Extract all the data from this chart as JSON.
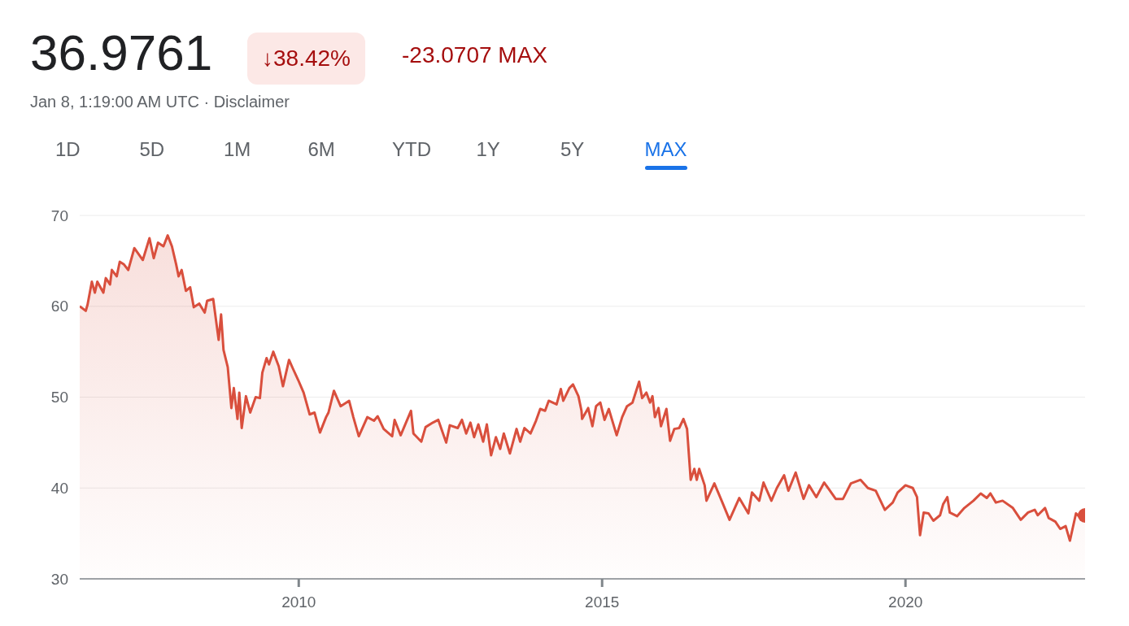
{
  "chart_data": {
    "type": "area",
    "title": "36.9761",
    "subtitle": "Jan 8, 1:19:00 AM UTC · Disclaimer",
    "annotations": [
      "↓38.42%",
      "-23.0707 MAX",
      "1D",
      "5D",
      "1M",
      "6M",
      "YTD",
      "1Y",
      "5Y",
      "MAX"
    ],
    "x": [
      2006.39,
      2006.49,
      2006.52,
      2006.59,
      2006.64,
      2006.68,
      2006.78,
      2006.82,
      2006.89,
      2006.92,
      2007.0,
      2007.05,
      2007.12,
      2007.19,
      2007.29,
      2007.43,
      2007.54,
      2007.61,
      2007.68,
      2007.77,
      2007.84,
      2007.91,
      2007.98,
      2008.02,
      2008.07,
      2008.14,
      2008.21,
      2008.27,
      2008.36,
      2008.45,
      2008.49,
      2008.59,
      2008.68,
      2008.72,
      2008.76,
      2008.83,
      2008.89,
      2008.93,
      2008.99,
      2009.02,
      2009.06,
      2009.13,
      2009.2,
      2009.29,
      2009.36,
      2009.4,
      2009.47,
      2009.51,
      2009.58,
      2009.67,
      2009.74,
      2009.84,
      2009.9,
      2009.99,
      2010.08,
      2010.18,
      2010.26,
      2010.35,
      2010.45,
      2010.49,
      2010.58,
      2010.69,
      2010.83,
      2010.9,
      2010.99,
      2011.13,
      2011.24,
      2011.3,
      2011.4,
      2011.54,
      2011.58,
      2011.68,
      2011.85,
      2011.89,
      2012.02,
      2012.09,
      2012.21,
      2012.3,
      2012.43,
      2012.49,
      2012.62,
      2012.69,
      2012.76,
      2012.83,
      2012.89,
      2012.96,
      2013.04,
      2013.1,
      2013.17,
      2013.25,
      2013.32,
      2013.38,
      2013.48,
      2013.59,
      2013.65,
      2013.72,
      2013.82,
      2013.91,
      2013.98,
      2014.06,
      2014.12,
      2014.25,
      2014.32,
      2014.36,
      2014.46,
      2014.52,
      2014.61,
      2014.66,
      2014.67,
      2014.77,
      2014.84,
      2014.9,
      2014.97,
      2015.04,
      2015.11,
      2015.24,
      2015.33,
      2015.41,
      2015.5,
      2015.61,
      2015.66,
      2015.73,
      2015.79,
      2015.83,
      2015.87,
      2015.93,
      2015.97,
      2016.06,
      2016.12,
      2016.19,
      2016.27,
      2016.34,
      2016.4,
      2016.46,
      2016.52,
      2016.56,
      2016.6,
      2016.69,
      2016.72,
      2016.85,
      2016.97,
      2017.1,
      2017.2,
      2017.26,
      2017.41,
      2017.47,
      2017.59,
      2017.66,
      2017.79,
      2017.88,
      2018.0,
      2018.07,
      2018.19,
      2018.32,
      2018.41,
      2018.53,
      2018.66,
      2018.85,
      2018.97,
      2019.1,
      2019.26,
      2019.38,
      2019.51,
      2019.66,
      2019.79,
      2019.87,
      2020.0,
      2020.12,
      2020.19,
      2020.24,
      2020.3,
      2020.38,
      2020.46,
      2020.57,
      2020.62,
      2020.69,
      2020.73,
      2020.85,
      2020.97,
      2021.12,
      2021.24,
      2021.34,
      2021.4,
      2021.49,
      2021.6,
      2021.77,
      2021.9,
      2022.02,
      2022.13,
      2022.18,
      2022.3,
      2022.36,
      2022.47,
      2022.55,
      2022.64,
      2022.71,
      2022.81,
      2022.89,
      2022.96
    ],
    "series": [
      {
        "color": "#d94f3d",
        "values": [
          60.0,
          59.5,
          60.2,
          62.7,
          61.5,
          62.7,
          61.5,
          63.1,
          62.4,
          64.0,
          63.3,
          64.9,
          64.6,
          64.0,
          66.4,
          65.1,
          67.5,
          65.3,
          67.0,
          66.6,
          67.8,
          66.6,
          64.6,
          63.3,
          64.0,
          61.7,
          62.1,
          59.9,
          60.3,
          59.3,
          60.6,
          60.8,
          56.3,
          59.1,
          55.2,
          53.3,
          48.8,
          51.0,
          47.6,
          50.5,
          46.6,
          50.1,
          48.3,
          50.0,
          49.9,
          52.7,
          54.3,
          53.6,
          55.0,
          53.4,
          51.2,
          54.1,
          53.2,
          51.9,
          50.5,
          48.1,
          48.3,
          46.1,
          47.8,
          48.3,
          50.7,
          49.0,
          49.6,
          47.8,
          45.7,
          47.8,
          47.4,
          47.9,
          46.5,
          45.7,
          47.5,
          45.8,
          48.5,
          46.0,
          45.1,
          46.7,
          47.2,
          47.5,
          45.0,
          46.9,
          46.6,
          47.5,
          46.0,
          47.2,
          45.6,
          47.0,
          45.1,
          47.0,
          43.6,
          45.6,
          44.3,
          46.0,
          43.8,
          46.5,
          45.1,
          46.6,
          46.0,
          47.4,
          48.7,
          48.5,
          49.6,
          49.2,
          50.9,
          49.6,
          51.0,
          51.4,
          50.1,
          48.5,
          47.6,
          48.8,
          46.8,
          49.0,
          49.4,
          47.5,
          48.7,
          45.8,
          47.8,
          49.0,
          49.4,
          51.7,
          49.9,
          50.5,
          49.4,
          50.1,
          47.8,
          48.8,
          46.8,
          48.7,
          45.2,
          46.5,
          46.6,
          47.6,
          46.5,
          40.9,
          42.1,
          40.9,
          42.1,
          40.3,
          38.6,
          40.5,
          38.6,
          36.5,
          38.0,
          38.9,
          37.2,
          39.5,
          38.6,
          40.6,
          38.6,
          40.0,
          41.4,
          39.7,
          41.7,
          38.8,
          40.3,
          39.0,
          40.6,
          38.8,
          38.8,
          40.5,
          40.9,
          40.0,
          39.7,
          37.6,
          38.4,
          39.5,
          40.3,
          40.0,
          39.0,
          34.8,
          37.3,
          37.2,
          36.4,
          37.0,
          38.2,
          39.0,
          37.3,
          36.9,
          37.8,
          38.6,
          39.4,
          38.9,
          39.4,
          38.4,
          38.6,
          37.8,
          36.5,
          37.3,
          37.6,
          37.0,
          37.8,
          36.7,
          36.3,
          35.5,
          35.8,
          34.2,
          37.2,
          36.7,
          36.98
        ]
      }
    ],
    "xlim": [
      2006.39,
      2022.96
    ],
    "xticks": [
      2010,
      2015,
      2020
    ],
    "ylim": [
      30,
      70
    ],
    "yticks": [
      30,
      40,
      50,
      60,
      70
    ],
    "grid": "y"
  }
}
